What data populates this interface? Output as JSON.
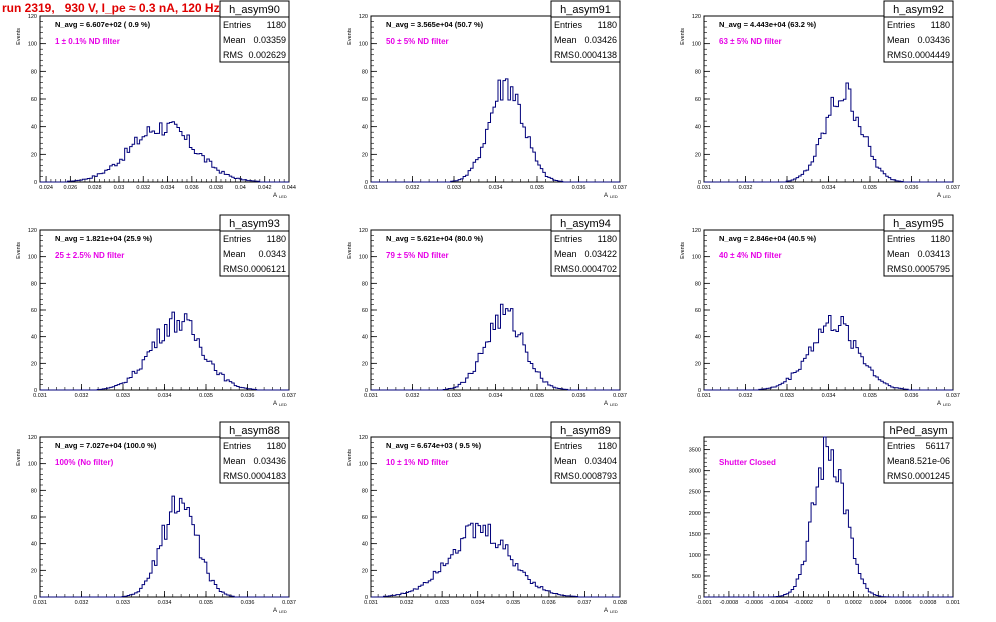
{
  "title": "run 2319,   930 V, I_pe ≈ 0.3 nA, 120 Hz",
  "chart_data": [
    {
      "type": "histogram",
      "name": "h_asym90",
      "xlabel": "A",
      "xlabel_sub": "LED",
      "ylabel": "Events",
      "xlim": [
        0.0235,
        0.044
      ],
      "ylim": [
        0,
        120
      ],
      "xticks": [
        "0.024",
        "0.026",
        "0.028",
        "0.03",
        "0.032",
        "0.034",
        "0.036",
        "0.038",
        "0.04",
        "0.042",
        "0.044"
      ],
      "xtick_values": [
        0.024,
        0.026,
        0.028,
        0.03,
        0.032,
        0.034,
        0.036,
        0.038,
        0.04,
        0.042,
        0.044
      ],
      "yticks": [
        0,
        20,
        40,
        60,
        80,
        100,
        120
      ],
      "stats": [
        [
          "Entries",
          "1180"
        ],
        [
          "Mean",
          "0.03359"
        ],
        [
          "RMS",
          "0.002629"
        ]
      ],
      "annotations": [
        "N_avg = 6.607e+02 ( 0.9 %)",
        "1 ± 0.1% ND filter"
      ],
      "mean": 0.03359,
      "rms": 0.002629,
      "peak": 40,
      "nbins": 100
    },
    {
      "type": "histogram",
      "name": "h_asym91",
      "xlabel": "A",
      "xlabel_sub": "LED",
      "ylabel": "Events",
      "xlim": [
        0.031,
        0.037
      ],
      "ylim": [
        0,
        120
      ],
      "xticks": [
        "0.031",
        "0.032",
        "0.033",
        "0.034",
        "0.035",
        "0.036",
        "0.037"
      ],
      "xtick_values": [
        0.031,
        0.032,
        0.033,
        0.034,
        0.035,
        0.036,
        0.037
      ],
      "yticks": [
        0,
        20,
        40,
        60,
        80,
        100,
        120
      ],
      "stats": [
        [
          "Entries",
          "1180"
        ],
        [
          "Mean",
          "0.03426"
        ],
        [
          "RMS",
          "0.0004138"
        ]
      ],
      "annotations": [
        "N_avg = 3.565e+04 (50.7 %)",
        "50 ± 5% ND filter"
      ],
      "mean": 0.03426,
      "rms": 0.0004138,
      "peak": 72,
      "nbins": 100
    },
    {
      "type": "histogram",
      "name": "h_asym92",
      "xlabel": "A",
      "xlabel_sub": "LED",
      "ylabel": "Events",
      "xlim": [
        0.031,
        0.037
      ],
      "ylim": [
        0,
        120
      ],
      "xticks": [
        "0.031",
        "0.032",
        "0.033",
        "0.034",
        "0.035",
        "0.036",
        "0.037"
      ],
      "xtick_values": [
        0.031,
        0.032,
        0.033,
        0.034,
        0.035,
        0.036,
        0.037
      ],
      "yticks": [
        0,
        20,
        40,
        60,
        80,
        100,
        120
      ],
      "stats": [
        [
          "Entries",
          "1180"
        ],
        [
          "Mean",
          "0.03436"
        ],
        [
          "RMS",
          "0.0004449"
        ]
      ],
      "annotations": [
        "N_avg = 4.443e+04 (63.2 %)",
        "63 ± 5% ND filter"
      ],
      "mean": 0.03436,
      "rms": 0.0004449,
      "peak": 64,
      "nbins": 100
    },
    {
      "type": "histogram",
      "name": "h_asym93",
      "xlabel": "A",
      "xlabel_sub": "LED",
      "ylabel": "Events",
      "xlim": [
        0.031,
        0.037
      ],
      "ylim": [
        0,
        120
      ],
      "xticks": [
        "0.031",
        "0.032",
        "0.033",
        "0.034",
        "0.035",
        "0.036",
        "0.037"
      ],
      "xtick_values": [
        0.031,
        0.032,
        0.033,
        0.034,
        0.035,
        0.036,
        0.037
      ],
      "yticks": [
        0,
        20,
        40,
        60,
        80,
        100,
        120
      ],
      "stats": [
        [
          "Entries",
          "1180"
        ],
        [
          "Mean",
          "0.0343"
        ],
        [
          "RMS",
          "0.0006121"
        ]
      ],
      "annotations": [
        "N_avg = 1.821e+04 (25.9 %)",
        "25 ± 2.5% ND filter"
      ],
      "mean": 0.0343,
      "rms": 0.0006121,
      "peak": 52,
      "nbins": 100
    },
    {
      "type": "histogram",
      "name": "h_asym94",
      "xlabel": "A",
      "xlabel_sub": "LED",
      "ylabel": "Events",
      "xlim": [
        0.031,
        0.037
      ],
      "ylim": [
        0,
        120
      ],
      "xticks": [
        "0.031",
        "0.032",
        "0.033",
        "0.034",
        "0.035",
        "0.036",
        "0.037"
      ],
      "xtick_values": [
        0.031,
        0.032,
        0.033,
        0.034,
        0.035,
        0.036,
        0.037
      ],
      "yticks": [
        0,
        20,
        40,
        60,
        80,
        100,
        120
      ],
      "stats": [
        [
          "Entries",
          "1180"
        ],
        [
          "Mean",
          "0.03422"
        ],
        [
          "RMS",
          "0.0004702"
        ]
      ],
      "annotations": [
        "N_avg = 5.621e+04 (80.0 %)",
        "79 ± 5% ND filter"
      ],
      "mean": 0.03422,
      "rms": 0.0004702,
      "peak": 56,
      "nbins": 100
    },
    {
      "type": "histogram",
      "name": "h_asym95",
      "xlabel": "A",
      "xlabel_sub": "LED",
      "ylabel": "Events",
      "xlim": [
        0.031,
        0.037
      ],
      "ylim": [
        0,
        120
      ],
      "xticks": [
        "0.031",
        "0.032",
        "0.033",
        "0.034",
        "0.035",
        "0.036",
        "0.037"
      ],
      "xtick_values": [
        0.031,
        0.032,
        0.033,
        0.034,
        0.035,
        0.036,
        0.037
      ],
      "yticks": [
        0,
        20,
        40,
        60,
        80,
        100,
        120
      ],
      "stats": [
        [
          "Entries",
          "1180"
        ],
        [
          "Mean",
          "0.03413"
        ],
        [
          "RMS",
          "0.0005795"
        ]
      ],
      "annotations": [
        "N_avg = 2.846e+04 (40.5 %)",
        "40 ± 4% ND filter"
      ],
      "mean": 0.03413,
      "rms": 0.0005795,
      "peak": 50,
      "nbins": 100
    },
    {
      "type": "histogram",
      "name": "h_asym88",
      "xlabel": "A",
      "xlabel_sub": "LED",
      "ylabel": "Events",
      "xlim": [
        0.031,
        0.037
      ],
      "ylim": [
        0,
        120
      ],
      "xticks": [
        "0.031",
        "0.032",
        "0.033",
        "0.034",
        "0.035",
        "0.036",
        "0.037"
      ],
      "xtick_values": [
        0.031,
        0.032,
        0.033,
        0.034,
        0.035,
        0.036,
        0.037
      ],
      "yticks": [
        0,
        20,
        40,
        60,
        80,
        100,
        120
      ],
      "stats": [
        [
          "Entries",
          "1180"
        ],
        [
          "Mean",
          "0.03436"
        ],
        [
          "RMS",
          "0.0004183"
        ]
      ],
      "annotations": [
        "N_avg = 7.027e+04 (100.0 %)",
        "100% (No filter)"
      ],
      "mean": 0.03436,
      "rms": 0.0004183,
      "peak": 72,
      "nbins": 100
    },
    {
      "type": "histogram",
      "name": "h_asym89",
      "xlabel": "A",
      "xlabel_sub": "LED",
      "ylabel": "Events",
      "xlim": [
        0.031,
        0.038
      ],
      "ylim": [
        0,
        120
      ],
      "xticks": [
        "0.031",
        "0.032",
        "0.033",
        "0.034",
        "0.035",
        "0.036",
        "0.037",
        "0.038"
      ],
      "xtick_values": [
        0.031,
        0.032,
        0.033,
        0.034,
        0.035,
        0.036,
        0.037,
        0.038
      ],
      "yticks": [
        0,
        20,
        40,
        60,
        80,
        100,
        120
      ],
      "stats": [
        [
          "Entries",
          "1180"
        ],
        [
          "Mean",
          "0.03404"
        ],
        [
          "RMS",
          "0.0008793"
        ]
      ],
      "annotations": [
        "N_avg = 6.674e+03 ( 9.5 %)",
        "10 ± 1% ND filter"
      ],
      "mean": 0.03404,
      "rms": 0.0008793,
      "peak": 50,
      "nbins": 100
    },
    {
      "type": "histogram",
      "name": "hPed_asym",
      "xlabel": "",
      "xlabel_sub": "",
      "ylabel": "",
      "xlim": [
        -0.001,
        0.001
      ],
      "ylim": [
        0,
        3800
      ],
      "xticks": [
        "-0.001",
        "-0.0008",
        "-0.0006",
        "-0.0004",
        "-0.0002",
        "0",
        "0.0002",
        "0.0004",
        "0.0006",
        "0.0008",
        "0.001"
      ],
      "xtick_values": [
        -0.001,
        -0.0008,
        -0.0006,
        -0.0004,
        -0.0002,
        0,
        0.0002,
        0.0004,
        0.0006,
        0.0008,
        0.001
      ],
      "yticks": [
        0,
        500,
        1000,
        1500,
        2000,
        2500,
        3000,
        3500
      ],
      "stats": [
        [
          "Entries",
          "56117"
        ],
        [
          "Mean",
          "8.521e-06"
        ],
        [
          "RMS",
          "0.0001245"
        ]
      ],
      "annotations": [
        "",
        "Shutter Closed"
      ],
      "mean": 8.521e-06,
      "rms": 0.0001245,
      "peak": 3550,
      "nbins": 100
    }
  ],
  "colors": {
    "histogram": "#00007a",
    "annotation": "#e600e6",
    "title": "#e00000",
    "axis": "#000000"
  }
}
